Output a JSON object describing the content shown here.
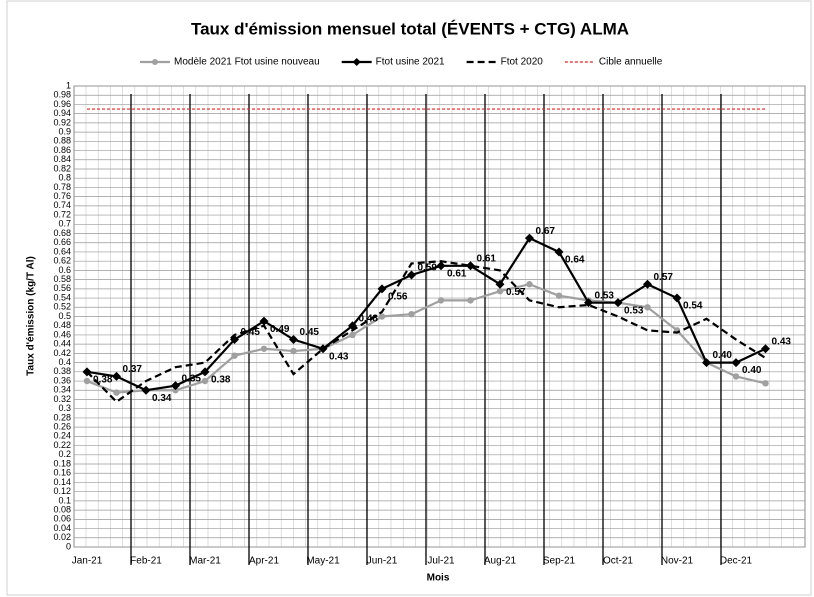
{
  "chart_data": {
    "type": "line",
    "title": "Taux d'émission mensuel total (ÉVENTS + CTG) ALMA",
    "x_label": "Mois",
    "y_label": "Taux d'émission (kg/T Al)",
    "categories": [
      "Jan-21",
      null,
      "Feb-21",
      null,
      "Mar-21",
      null,
      "Apr-21",
      null,
      "May-21",
      null,
      "Jun-21",
      null,
      "Jul-21",
      null,
      "Aug-21",
      null,
      "Sep-21",
      null,
      "Oct-21",
      null,
      "Nov-21",
      null,
      "Dec-21",
      null
    ],
    "ylim": [
      0,
      1
    ],
    "yticks": [
      0,
      0.02,
      0.04,
      0.06,
      0.08,
      0.1,
      0.12,
      0.14,
      0.16,
      0.18,
      0.2,
      0.22,
      0.24,
      0.26,
      0.28,
      0.3,
      0.32,
      0.34,
      0.36,
      0.38,
      0.4,
      0.42,
      0.44,
      0.46,
      0.48,
      0.5,
      0.52,
      0.54,
      0.56,
      0.58,
      0.6,
      0.62,
      0.64,
      0.66,
      0.68,
      0.7,
      0.72,
      0.74,
      0.76,
      0.78,
      0.8,
      0.82,
      0.84,
      0.86,
      0.88,
      0.9,
      0.92,
      0.94,
      0.96,
      0.98,
      1
    ],
    "grid": true,
    "legend": "top",
    "series": [
      {
        "name": "Modèle 2021 Ftot usine nouveau",
        "color": "#a0a0a0",
        "style": "solid",
        "marker": "circle",
        "values": [
          0.36,
          0.335,
          0.34,
          0.34,
          0.36,
          0.415,
          0.43,
          0.425,
          0.43,
          0.46,
          0.5,
          0.505,
          0.535,
          0.535,
          0.555,
          0.57,
          0.545,
          0.535,
          0.53,
          0.52,
          0.47,
          0.4,
          0.37,
          0.355
        ]
      },
      {
        "name": "Ftot usine 2021",
        "color": "#000000",
        "style": "solid",
        "marker": "diamond",
        "values": [
          0.38,
          0.37,
          0.34,
          0.35,
          0.38,
          0.45,
          0.49,
          0.45,
          0.43,
          0.48,
          0.56,
          0.59,
          0.61,
          0.61,
          0.57,
          0.67,
          0.64,
          0.53,
          0.53,
          0.57,
          0.54,
          0.4,
          0.4,
          0.43
        ],
        "value_labels": [
          "0.38",
          "0.37",
          "0.34",
          "0.35",
          "0.38",
          "0.45",
          "0.49",
          "0.45",
          "0.43",
          "0.48",
          "0.56",
          "0.59",
          "0.61",
          "0.61",
          "0.57",
          "0.67",
          "0.64",
          "0.53",
          "0.53",
          "0.57",
          "0.54",
          "0.40",
          "0.40",
          "0.43"
        ]
      },
      {
        "name": "Ftot 2020",
        "color": "#000000",
        "style": "dashed",
        "marker": "none",
        "values": [
          0.38,
          0.315,
          0.36,
          0.39,
          0.4,
          0.46,
          0.48,
          0.375,
          0.43,
          0.47,
          0.51,
          0.615,
          0.62,
          0.61,
          0.6,
          0.535,
          0.52,
          0.525,
          0.5,
          0.47,
          0.465,
          0.495,
          0.45,
          0.41
        ]
      },
      {
        "name": "Cible annuelle",
        "color": "#e02020",
        "style": "dotted",
        "marker": "none",
        "values": [
          0.95,
          0.95,
          0.95,
          0.95,
          0.95,
          0.95,
          0.95,
          0.95,
          0.95,
          0.95,
          0.95,
          0.95,
          0.95,
          0.95,
          0.95,
          0.95,
          0.95,
          0.95,
          0.95,
          0.95,
          0.95,
          0.95,
          0.95,
          0.95
        ]
      }
    ]
  }
}
